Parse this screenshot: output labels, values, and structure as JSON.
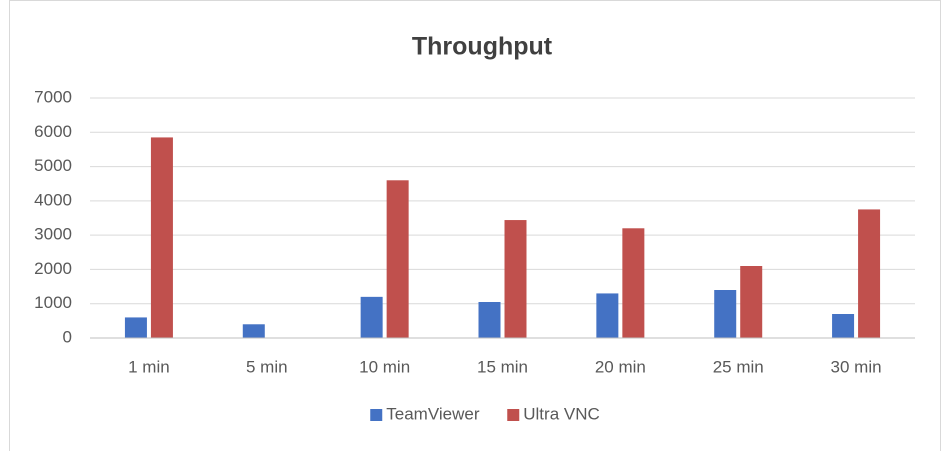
{
  "chart_data": {
    "type": "bar",
    "title": "Throughput",
    "categories": [
      "1 min",
      "5 min",
      "10 min",
      "15 min",
      "20 min",
      "25 min",
      "30 min"
    ],
    "series": [
      {
        "name": "TeamViewer",
        "color": "#4472c4",
        "values": [
          600,
          400,
          1200,
          1050,
          1300,
          1400,
          700
        ]
      },
      {
        "name": "Ultra VNC",
        "color": "#c0504d",
        "values": [
          5850,
          0,
          4600,
          3440,
          3200,
          2100,
          3750
        ]
      }
    ],
    "ylim": [
      0,
      7000
    ],
    "yticks": [
      0,
      1000,
      2000,
      3000,
      4000,
      5000,
      6000,
      7000
    ],
    "grid": true,
    "legend": "bottom"
  }
}
